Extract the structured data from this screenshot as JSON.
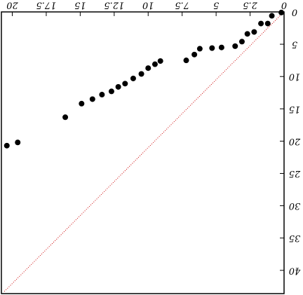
{
  "chart_data": {
    "type": "scatter",
    "title": "",
    "xlabel": "",
    "ylabel": "",
    "xlim": [
      0,
      20.8
    ],
    "ylim": [
      0,
      43.6
    ],
    "x_ticks": [
      0,
      2.5,
      5,
      7.5,
      10,
      12.5,
      15,
      17.5,
      20
    ],
    "x_tick_labels": [
      "0",
      "2.5",
      "5",
      "7.5",
      "10",
      "12.5",
      "15",
      "17.5",
      "20"
    ],
    "y_ticks": [
      0,
      5,
      10,
      15,
      20,
      25,
      30,
      35,
      40
    ],
    "y_tick_labels": [
      "0",
      "5",
      "10",
      "15",
      "20",
      "25",
      "30",
      "35",
      "40"
    ],
    "grid": false,
    "legend": "none",
    "orientation": "rotated-180",
    "series": [
      {
        "marker": "filled-circle",
        "color": "#000000",
        "points": [
          [
            0.2,
            0.1
          ],
          [
            0.9,
            0.6
          ],
          [
            1.2,
            1.8
          ],
          [
            1.7,
            1.8
          ],
          [
            2.2,
            3.1
          ],
          [
            2.7,
            3.4
          ],
          [
            3.1,
            4.6
          ],
          [
            3.6,
            5.3
          ],
          [
            4.6,
            5.5
          ],
          [
            5.3,
            5.6
          ],
          [
            6.2,
            5.7
          ],
          [
            6.6,
            6.6
          ],
          [
            7.2,
            7.5
          ],
          [
            9.1,
            7.6
          ],
          [
            9.5,
            8.1
          ],
          [
            10.0,
            8.7
          ],
          [
            10.5,
            9.6
          ],
          [
            11.1,
            10.3
          ],
          [
            11.7,
            11.1
          ],
          [
            12.2,
            11.6
          ],
          [
            12.7,
            12.3
          ],
          [
            13.4,
            12.8
          ],
          [
            14.1,
            13.5
          ],
          [
            14.9,
            14.2
          ],
          [
            16.1,
            16.3
          ],
          [
            19.6,
            20.2
          ],
          [
            20.4,
            20.7
          ]
        ]
      },
      {
        "marker": "dotted-line",
        "color": "#cc0000",
        "points": [
          [
            0.3,
            0.6
          ],
          [
            20.6,
            43.3
          ]
        ]
      }
    ]
  }
}
